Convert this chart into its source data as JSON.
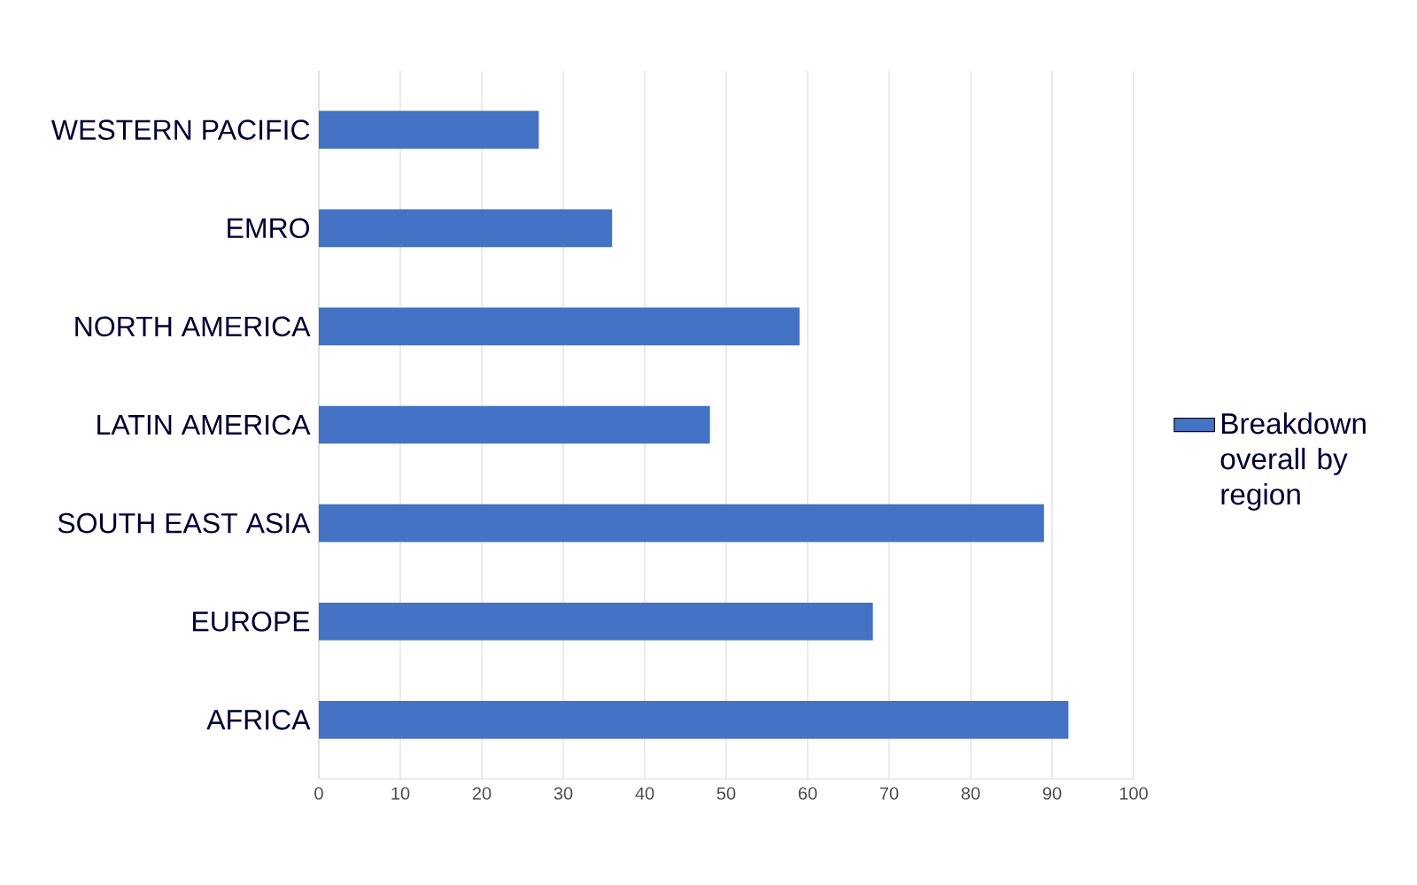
{
  "chart_data": {
    "type": "bar",
    "orientation": "horizontal",
    "categories": [
      "WESTERN PACIFIC",
      "EMRO",
      "NORTH AMERICA",
      "LATIN AMERICA",
      "SOUTH EAST ASIA",
      "EUROPE",
      "AFRICA"
    ],
    "series": [
      {
        "name": "Breakdown overall by region",
        "color": "#4472c4",
        "values": [
          27,
          36,
          59,
          48,
          89,
          68,
          92
        ]
      }
    ],
    "xlim": [
      0,
      100
    ],
    "xticks": [
      0,
      10,
      20,
      30,
      40,
      50,
      60,
      70,
      80,
      90,
      100
    ],
    "grid": "x",
    "legend": "right"
  }
}
